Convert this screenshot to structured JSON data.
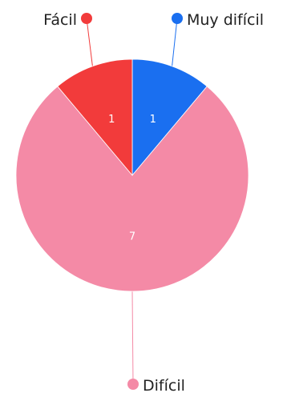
{
  "chart_data": {
    "type": "pie",
    "title": "",
    "legend": "labels-outside",
    "slices": [
      {
        "label": "Muy difícil",
        "value": 1,
        "color": "#1a6ff0"
      },
      {
        "label": "Difícil",
        "value": 7,
        "color": "#f48aa6"
      },
      {
        "label": "Fácil",
        "value": 1,
        "color": "#f23b3b"
      }
    ]
  }
}
